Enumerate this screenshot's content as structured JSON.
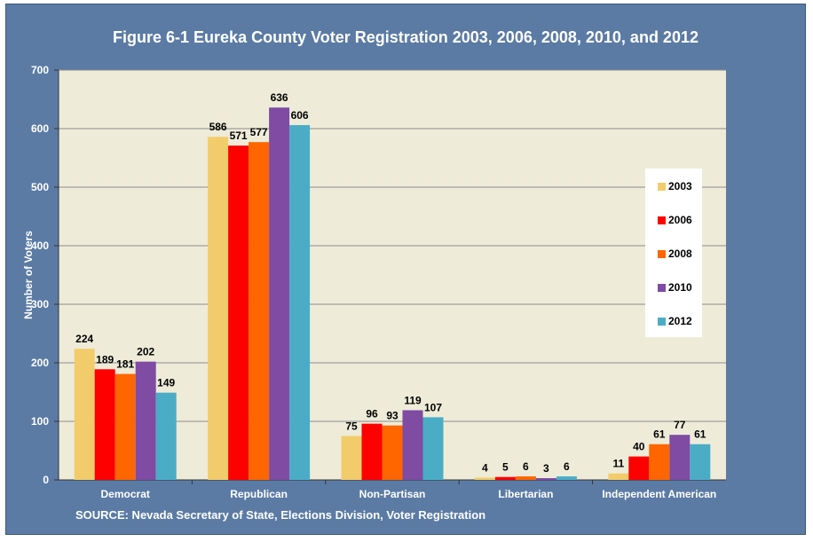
{
  "title": "Figure 6-1 Eureka County Voter Registration 2003, 2006, 2008, 2010, and 2012",
  "source": "SOURCE: Nevada Secretary of State, Elections Division, Voter Registration",
  "chart_data": {
    "type": "bar",
    "title": "Figure 6-1 Eureka County Voter Registration 2003, 2006, 2008, 2010, and 2012",
    "xlabel": "",
    "ylabel": "Number of Voters",
    "ylim": [
      0,
      700
    ],
    "yticks": [
      0,
      100,
      200,
      300,
      400,
      500,
      600,
      700
    ],
    "grid": true,
    "legend_position": "right",
    "categories": [
      "Democrat",
      "Republican",
      "Non-Partisan",
      "Libertarian",
      "Independent American"
    ],
    "series": [
      {
        "name": "2003",
        "color": "#f2cc6b",
        "values": [
          224,
          586,
          75,
          4,
          11
        ]
      },
      {
        "name": "2006",
        "color": "#ff0000",
        "values": [
          189,
          571,
          96,
          5,
          40
        ]
      },
      {
        "name": "2008",
        "color": "#ff6600",
        "values": [
          181,
          577,
          93,
          6,
          61
        ]
      },
      {
        "name": "2010",
        "color": "#7f4ba3",
        "values": [
          202,
          636,
          119,
          3,
          77
        ]
      },
      {
        "name": "2012",
        "color": "#4bacc6",
        "values": [
          149,
          606,
          107,
          6,
          61
        ]
      }
    ]
  }
}
